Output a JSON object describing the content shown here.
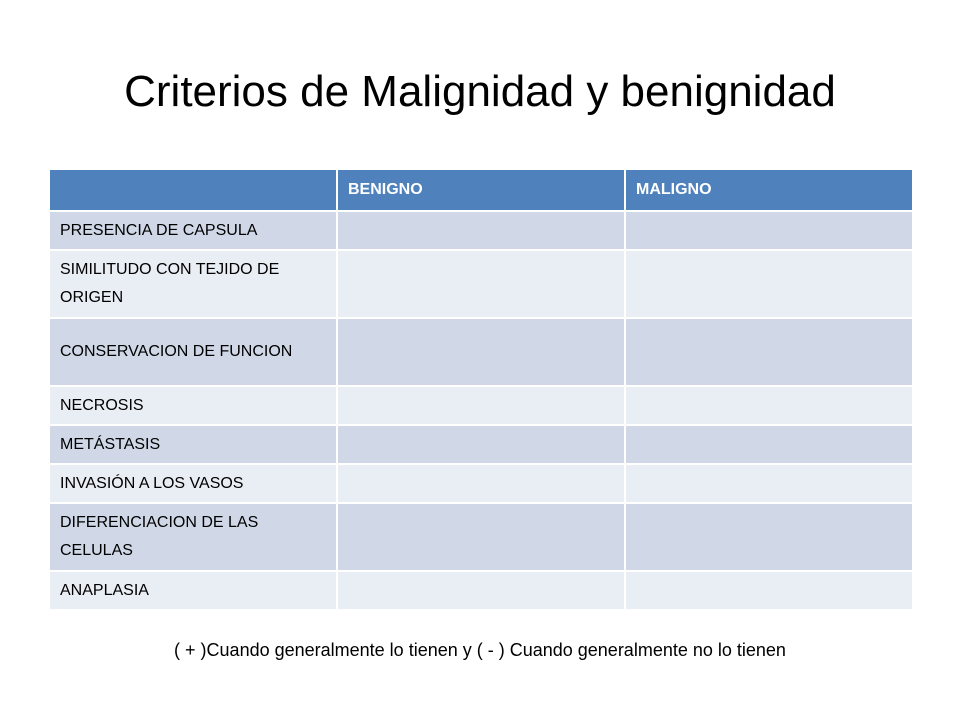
{
  "title": "Criterios de Malignidad y benignidad",
  "table": {
    "headers": [
      "",
      "BENIGNO",
      "MALIGNO"
    ],
    "rows": [
      {
        "criterion": "PRESENCIA DE CAPSULA",
        "benigno": "",
        "maligno": ""
      },
      {
        "criterion": "SIMILITUDO CON TEJIDO DE ORIGEN",
        "benigno": "",
        "maligno": ""
      },
      {
        "criterion": "CONSERVACION DE FUNCION",
        "benigno": "",
        "maligno": ""
      },
      {
        "criterion": "NECROSIS",
        "benigno": "",
        "maligno": ""
      },
      {
        "criterion": "METÁSTASIS",
        "benigno": "",
        "maligno": ""
      },
      {
        "criterion": "INVASIÓN A LOS VASOS",
        "benigno": "",
        "maligno": ""
      },
      {
        "criterion": "DIFERENCIACION DE LAS CELULAS",
        "benigno": "",
        "maligno": ""
      },
      {
        "criterion": "ANAPLASIA",
        "benigno": "",
        "maligno": ""
      }
    ]
  },
  "footnote": "( + )Cuando generalmente lo tienen y ( - ) Cuando generalmente no lo tienen",
  "colors": {
    "header": "#4f81bd",
    "band_dark": "#d0d8e8",
    "band_light": "#e9edf4"
  }
}
